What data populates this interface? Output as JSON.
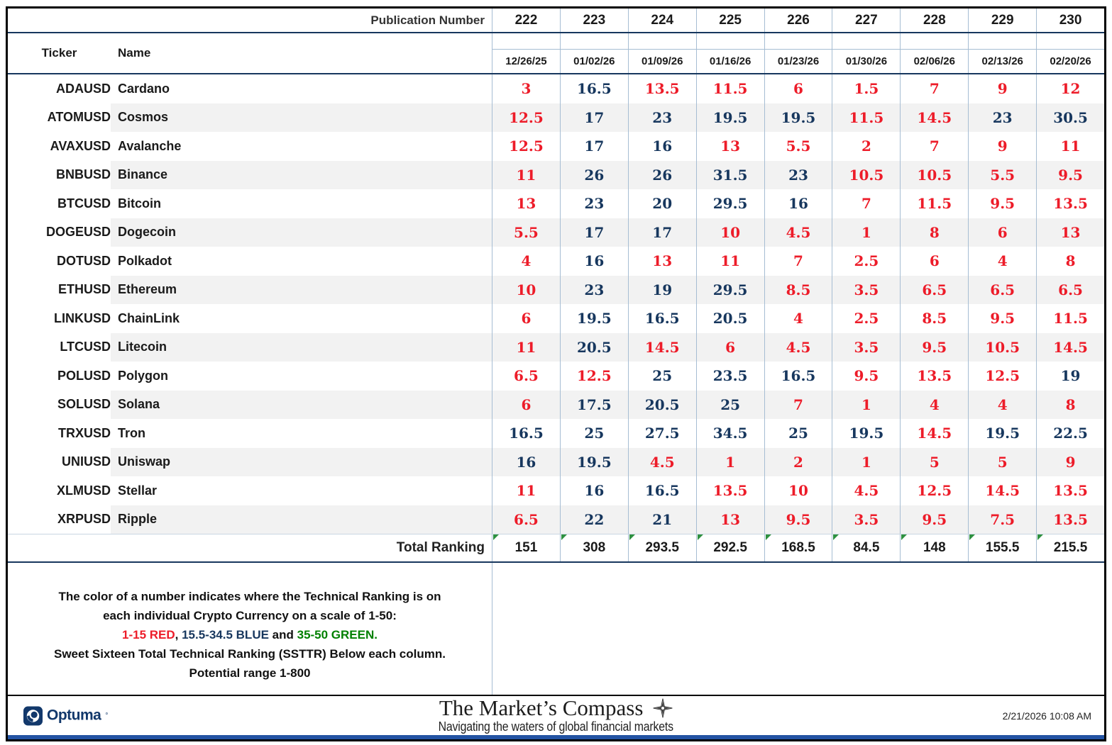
{
  "header": {
    "publication_label": "Publication Number",
    "ticker_label": "Ticker",
    "name_label": "Name"
  },
  "chart_data": {
    "type": "table",
    "publication_numbers": [
      "222",
      "223",
      "224",
      "225",
      "226",
      "227",
      "228",
      "229",
      "230"
    ],
    "dates": [
      "12/26/25",
      "01/02/26",
      "01/09/26",
      "01/16/26",
      "01/23/26",
      "01/30/26",
      "02/06/26",
      "02/13/26",
      "02/20/26"
    ],
    "rows": [
      {
        "ticker": "ADAUSD",
        "name": "Cardano",
        "values": [
          3,
          16.5,
          13.5,
          11.5,
          6,
          1.5,
          7,
          9,
          12
        ]
      },
      {
        "ticker": "ATOMUSD",
        "name": "Cosmos",
        "values": [
          12.5,
          17,
          23,
          19.5,
          19.5,
          11.5,
          14.5,
          23,
          30.5
        ]
      },
      {
        "ticker": "AVAXUSD",
        "name": "Avalanche",
        "values": [
          12.5,
          17,
          16,
          13,
          5.5,
          2,
          7,
          9,
          11
        ]
      },
      {
        "ticker": "BNBUSD",
        "name": "Binance",
        "values": [
          11,
          26,
          26,
          31.5,
          23,
          10.5,
          10.5,
          5.5,
          9.5
        ]
      },
      {
        "ticker": "BTCUSD",
        "name": "Bitcoin",
        "values": [
          13,
          23,
          20,
          29.5,
          16,
          7,
          11.5,
          9.5,
          13.5
        ]
      },
      {
        "ticker": "DOGEUSD",
        "name": "Dogecoin",
        "values": [
          5.5,
          17,
          17,
          10,
          4.5,
          1,
          8,
          6,
          13
        ]
      },
      {
        "ticker": "DOTUSD",
        "name": "Polkadot",
        "values": [
          4,
          16,
          13,
          11,
          7,
          2.5,
          6,
          4,
          8
        ]
      },
      {
        "ticker": "ETHUSD",
        "name": "Ethereum",
        "values": [
          10,
          23,
          19,
          29.5,
          8.5,
          3.5,
          6.5,
          6.5,
          6.5
        ]
      },
      {
        "ticker": "LINKUSD",
        "name": "ChainLink",
        "values": [
          6,
          19.5,
          16.5,
          20.5,
          4,
          2.5,
          8.5,
          9.5,
          11.5
        ]
      },
      {
        "ticker": "LTCUSD",
        "name": "Litecoin",
        "values": [
          11,
          20.5,
          14.5,
          6,
          4.5,
          3.5,
          9.5,
          10.5,
          14.5
        ]
      },
      {
        "ticker": "POLUSD",
        "name": "Polygon",
        "values": [
          6.5,
          12.5,
          25,
          23.5,
          16.5,
          9.5,
          13.5,
          12.5,
          19
        ]
      },
      {
        "ticker": "SOLUSD",
        "name": "Solana",
        "values": [
          6,
          17.5,
          20.5,
          25,
          7,
          1,
          4,
          4,
          8
        ]
      },
      {
        "ticker": "TRXUSD",
        "name": "Tron",
        "values": [
          16.5,
          25,
          27.5,
          34.5,
          25,
          19.5,
          14.5,
          19.5,
          22.5
        ]
      },
      {
        "ticker": "UNIUSD",
        "name": "Uniswap",
        "values": [
          16,
          19.5,
          4.5,
          1,
          2,
          1,
          5,
          5,
          9
        ]
      },
      {
        "ticker": "XLMUSD",
        "name": "Stellar",
        "values": [
          11,
          16,
          16.5,
          13.5,
          10,
          4.5,
          12.5,
          14.5,
          13.5
        ]
      },
      {
        "ticker": "XRPUSD",
        "name": "Ripple",
        "values": [
          6.5,
          22,
          21,
          13,
          9.5,
          3.5,
          9.5,
          7.5,
          13.5
        ]
      }
    ],
    "total_label": "Total Ranking",
    "totals": [
      151,
      308,
      293.5,
      292.5,
      168.5,
      84.5,
      148,
      155.5,
      215.5
    ],
    "value_color_rule": {
      "red": [
        1,
        15
      ],
      "blue": [
        15.5,
        34.5
      ],
      "green": [
        35,
        50
      ]
    }
  },
  "note": {
    "line1": "The color of a number indicates where the Technical Ranking is on",
    "line2": "each individual Crypto Currency on a scale of 1-50:",
    "red_range": "1-15 RED",
    "comma": ", ",
    "blue_range": "15.5-34.5 BLUE",
    "and_word": " and ",
    "green_range": "35-50 GREEN.",
    "line4": "Sweet Sixteen Total Technical Ranking (SSTTR) Below each column.",
    "line5": "Potential range 1-800"
  },
  "footer": {
    "brand": "Optuma",
    "brand_mark": "°",
    "masthead": "The Market’s Compass",
    "tagline": "Navigating the waters of global financial markets",
    "timestamp": "2/21/2026 10:08 AM"
  },
  "colors": {
    "red": "#ed1c29",
    "blue": "#17375e",
    "green": "#008000",
    "grid_light": "#a6bdd3",
    "grid_dark": "#17375e",
    "stripe": "#f2f2f2",
    "bottom_strip": "#2353a3"
  }
}
